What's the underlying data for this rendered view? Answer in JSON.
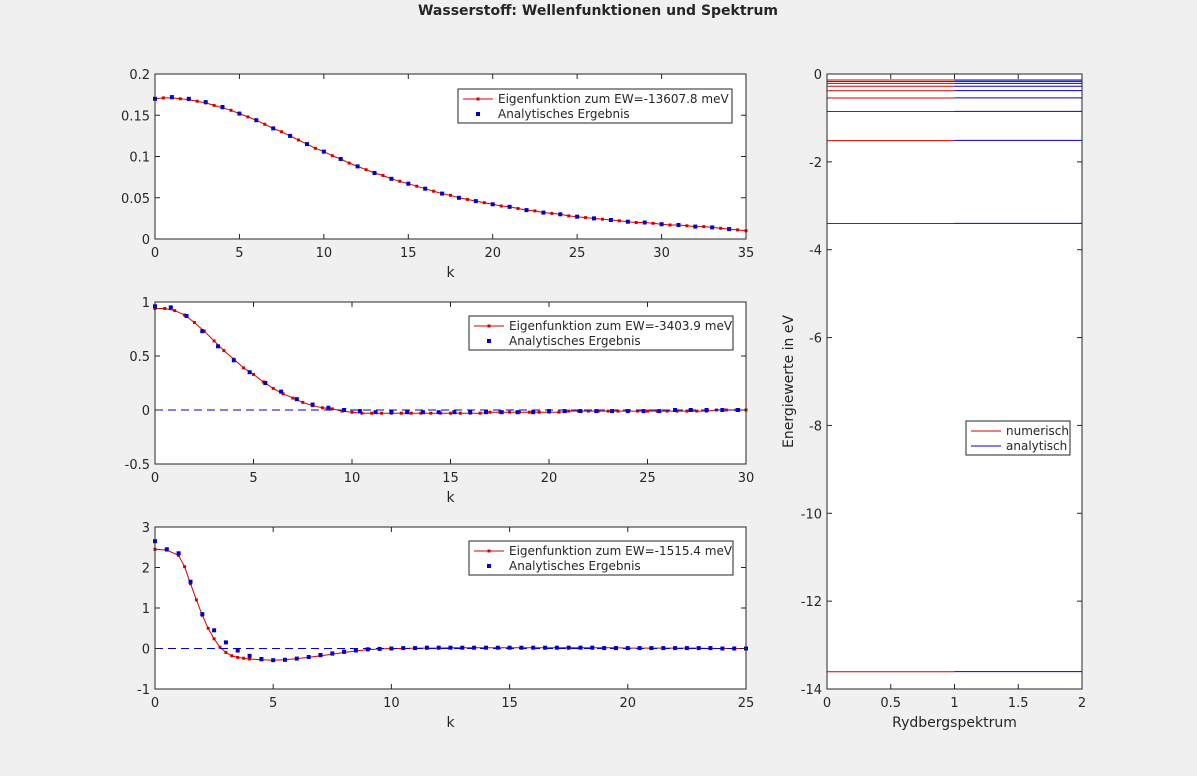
{
  "figure": {
    "title": "Wasserstoff: Wellenfunktionen und Spektrum"
  },
  "colors": {
    "numeric": "#d40000",
    "analytic": "#0000c8",
    "axes_bg": "#ffffff",
    "figure_bg": "#f0f0f0"
  },
  "chart_data": [
    {
      "type": "line",
      "xlabel": "k",
      "ylabel": "",
      "xlim": [
        0,
        35
      ],
      "ylim": [
        0,
        0.2
      ],
      "xticks": [
        0,
        5,
        10,
        15,
        20,
        25,
        30,
        35
      ],
      "yticks": [
        0,
        0.05,
        0.1,
        0.15,
        0.2
      ],
      "ytick_labels": [
        "0",
        "0.05",
        "0.1",
        "0.15",
        "0.2"
      ],
      "legend": {
        "position": "top-right",
        "entries": [
          "Eigenfunktion zum EW=-13607.8 meV",
          "Analytisches Ergebnis"
        ]
      },
      "series": [
        {
          "name": "Eigenfunktion zum EW=-13607.8 meV",
          "style": "line-with-markers",
          "color": "#d40000",
          "x": [
            0,
            0.5,
            1,
            1.5,
            2,
            2.5,
            3,
            3.5,
            4,
            4.5,
            5,
            5.5,
            6,
            6.5,
            7,
            7.5,
            8,
            8.5,
            9,
            9.5,
            10,
            10.5,
            11,
            11.5,
            12,
            12.5,
            13,
            13.5,
            14,
            14.5,
            15,
            15.5,
            16,
            16.5,
            17,
            17.5,
            18,
            18.5,
            19,
            19.5,
            20,
            20.5,
            21,
            21.5,
            22,
            22.5,
            23,
            23.5,
            24,
            24.5,
            25,
            25.5,
            26,
            26.5,
            27,
            27.5,
            28,
            28.5,
            29,
            29.5,
            30,
            30.5,
            31,
            31.5,
            32,
            32.5,
            33,
            33.5,
            34,
            34.5,
            35
          ],
          "y": [
            0.17,
            0.171,
            0.171,
            0.17,
            0.169,
            0.167,
            0.165,
            0.162,
            0.159,
            0.156,
            0.152,
            0.148,
            0.144,
            0.139,
            0.134,
            0.13,
            0.125,
            0.12,
            0.115,
            0.11,
            0.106,
            0.101,
            0.097,
            0.092,
            0.088,
            0.084,
            0.08,
            0.077,
            0.073,
            0.07,
            0.067,
            0.064,
            0.061,
            0.058,
            0.055,
            0.053,
            0.05,
            0.048,
            0.046,
            0.044,
            0.042,
            0.04,
            0.039,
            0.037,
            0.035,
            0.034,
            0.032,
            0.031,
            0.03,
            0.028,
            0.027,
            0.026,
            0.025,
            0.024,
            0.023,
            0.022,
            0.021,
            0.02,
            0.02,
            0.019,
            0.018,
            0.017,
            0.017,
            0.016,
            0.015,
            0.015,
            0.014,
            0.013,
            0.012,
            0.011,
            0.01
          ]
        },
        {
          "name": "Analytisches Ergebnis",
          "style": "markers",
          "color": "#0000c8",
          "x": [
            0,
            1,
            2,
            3,
            4,
            5,
            6,
            7,
            8,
            9,
            10,
            11,
            12,
            13,
            14,
            15,
            16,
            17,
            18,
            19,
            20,
            21,
            22,
            23,
            24,
            25,
            26,
            27,
            28,
            29,
            30,
            31,
            32,
            33,
            34
          ],
          "y": [
            0.17,
            0.172,
            0.17,
            0.166,
            0.16,
            0.152,
            0.144,
            0.134,
            0.125,
            0.115,
            0.106,
            0.097,
            0.088,
            0.08,
            0.073,
            0.067,
            0.061,
            0.055,
            0.05,
            0.046,
            0.042,
            0.039,
            0.035,
            0.032,
            0.03,
            0.027,
            0.025,
            0.023,
            0.021,
            0.02,
            0.018,
            0.017,
            0.015,
            0.014,
            0.012
          ]
        },
        {
          "name": "",
          "style": "dashed",
          "color": "#0000c8",
          "x": [
            0,
            35
          ],
          "y": [
            0,
            0
          ]
        }
      ]
    },
    {
      "type": "line",
      "xlabel": "k",
      "ylabel": "",
      "xlim": [
        0,
        30
      ],
      "ylim": [
        -0.5,
        1
      ],
      "xticks": [
        0,
        5,
        10,
        15,
        20,
        25,
        30
      ],
      "yticks": [
        -0.5,
        0,
        0.5,
        1
      ],
      "ytick_labels": [
        "-0.5",
        "0",
        "0.5",
        "1"
      ],
      "legend": {
        "position": "top-right",
        "entries": [
          "Eigenfunktion zum EW=-3403.9 meV",
          "Analytisches Ergebnis"
        ]
      },
      "series": [
        {
          "name": "Eigenfunktion zum EW=-3403.9 meV",
          "style": "line-with-markers",
          "color": "#d40000",
          "x": [
            0,
            0.5,
            1,
            1.5,
            2,
            2.5,
            3,
            3.5,
            4,
            4.5,
            5,
            5.5,
            6,
            6.5,
            7,
            7.5,
            8,
            8.5,
            9,
            9.5,
            10,
            10.5,
            11,
            11.5,
            12,
            12.5,
            13,
            13.5,
            14,
            14.5,
            15,
            15.5,
            16,
            16.5,
            17,
            17.5,
            18,
            18.5,
            19,
            19.5,
            20,
            20.5,
            21,
            21.5,
            22,
            22.5,
            23,
            23.5,
            24,
            24.5,
            25,
            25.5,
            26,
            26.5,
            27,
            27.5,
            28,
            28.5,
            29,
            29.5,
            30
          ],
          "y": [
            0.94,
            0.94,
            0.92,
            0.88,
            0.81,
            0.73,
            0.64,
            0.55,
            0.47,
            0.39,
            0.33,
            0.26,
            0.2,
            0.15,
            0.11,
            0.07,
            0.04,
            0.02,
            0.01,
            -0.01,
            -0.02,
            -0.03,
            -0.03,
            -0.03,
            -0.03,
            -0.03,
            -0.03,
            -0.03,
            -0.03,
            -0.03,
            -0.03,
            -0.03,
            -0.03,
            -0.03,
            -0.02,
            -0.02,
            -0.02,
            -0.02,
            -0.02,
            -0.02,
            -0.02,
            -0.02,
            -0.01,
            -0.01,
            -0.01,
            -0.01,
            -0.01,
            -0.01,
            -0.01,
            -0.01,
            -0.01,
            -0.01,
            -0.01,
            -0.01,
            -0.01,
            -0.01,
            -0.01,
            0.0,
            0.0,
            0.0,
            0.0
          ]
        },
        {
          "name": "Analytisches Ergebnis",
          "style": "markers",
          "color": "#0000c8",
          "x": [
            0,
            0.8,
            1.6,
            2.4,
            3.2,
            4.0,
            4.8,
            5.6,
            6.4,
            7.2,
            8.0,
            8.8,
            9.6,
            10.4,
            11.2,
            12.0,
            12.8,
            13.6,
            14.4,
            15.2,
            16.0,
            16.8,
            17.6,
            18.4,
            19.2,
            20.0,
            20.8,
            21.6,
            22.4,
            23.2,
            24.0,
            24.8,
            25.6,
            26.4,
            27.2,
            28.0,
            28.8,
            29.6
          ],
          "y": [
            0.96,
            0.95,
            0.87,
            0.73,
            0.59,
            0.46,
            0.35,
            0.25,
            0.17,
            0.1,
            0.05,
            0.02,
            0.0,
            -0.01,
            -0.02,
            -0.02,
            -0.02,
            -0.02,
            -0.02,
            -0.02,
            -0.02,
            -0.02,
            -0.02,
            -0.02,
            -0.02,
            -0.01,
            -0.01,
            -0.01,
            -0.01,
            -0.01,
            -0.01,
            -0.01,
            -0.01,
            0.0,
            0.0,
            0.0,
            0.0,
            0.0
          ]
        },
        {
          "name": "",
          "style": "dashed",
          "color": "#0000c8",
          "x": [
            0,
            30
          ],
          "y": [
            0,
            0
          ]
        }
      ]
    },
    {
      "type": "line",
      "xlabel": "k",
      "ylabel": "",
      "xlim": [
        0,
        25
      ],
      "ylim": [
        -1,
        3
      ],
      "xticks": [
        0,
        5,
        10,
        15,
        20,
        25
      ],
      "yticks": [
        -1,
        0,
        1,
        2,
        3
      ],
      "ytick_labels": [
        "-1",
        "0",
        "1",
        "2",
        "3"
      ],
      "legend": {
        "position": "top-right",
        "entries": [
          "Eigenfunktion zum EW=-1515.4 meV",
          "Analytisches Ergebnis"
        ]
      },
      "series": [
        {
          "name": "Eigenfunktion zum EW=-1515.4 meV",
          "style": "line-with-markers",
          "color": "#d40000",
          "x": [
            0,
            0.5,
            1.0,
            1.25,
            1.5,
            1.75,
            2.0,
            2.25,
            2.5,
            2.75,
            3.0,
            3.25,
            3.5,
            3.75,
            4.0,
            4.5,
            5.0,
            5.5,
            6.0,
            6.5,
            7.0,
            7.5,
            8.0,
            8.5,
            9.0,
            9.5,
            10.0,
            10.5,
            11.0,
            11.5,
            12.0,
            12.5,
            13.0,
            13.5,
            14.0,
            14.5,
            15.0,
            15.5,
            16.0,
            16.5,
            17.0,
            17.5,
            18.0,
            18.5,
            19.0,
            19.5,
            20.0,
            20.5,
            21.0,
            21.5,
            22.0,
            22.5,
            23.0,
            23.5,
            24.0,
            24.5,
            25.0
          ],
          "y": [
            2.45,
            2.43,
            2.3,
            2.02,
            1.6,
            1.2,
            0.82,
            0.5,
            0.24,
            0.03,
            -0.1,
            -0.18,
            -0.22,
            -0.24,
            -0.26,
            -0.28,
            -0.29,
            -0.28,
            -0.25,
            -0.22,
            -0.18,
            -0.14,
            -0.1,
            -0.06,
            -0.03,
            -0.01,
            0.0,
            0.0,
            0.01,
            0.01,
            0.01,
            0.02,
            0.02,
            0.02,
            0.02,
            0.02,
            0.02,
            0.02,
            0.02,
            0.02,
            0.02,
            0.02,
            0.02,
            0.02,
            0.02,
            0.02,
            0.01,
            0.01,
            0.01,
            0.01,
            0.01,
            0.01,
            0.01,
            0.0,
            0.0,
            0.0,
            0.0
          ]
        },
        {
          "name": "Analytisches Ergebnis",
          "style": "markers",
          "color": "#0000c8",
          "x": [
            0,
            0.5,
            1.0,
            1.5,
            2.0,
            2.5,
            3.0,
            3.5,
            4.0,
            4.5,
            5.0,
            5.5,
            6.0,
            6.5,
            7.0,
            7.5,
            8.0,
            8.5,
            9.0,
            9.5,
            10.0,
            10.5,
            11.0,
            11.5,
            12.0,
            12.5,
            13.0,
            13.5,
            14.0,
            14.5,
            15.0,
            15.5,
            16.0,
            16.5,
            17.0,
            17.5,
            18.0,
            18.5,
            19.0,
            19.5,
            20.0,
            20.5,
            21.0,
            21.5,
            22.0,
            22.5,
            23.0,
            23.5,
            24.0,
            24.5,
            25.0
          ],
          "y": [
            2.65,
            2.45,
            2.35,
            1.65,
            0.85,
            0.45,
            0.15,
            -0.05,
            -0.18,
            -0.26,
            -0.29,
            -0.28,
            -0.25,
            -0.21,
            -0.16,
            -0.12,
            -0.08,
            -0.05,
            -0.02,
            -0.01,
            0.0,
            0.01,
            0.01,
            0.02,
            0.02,
            0.02,
            0.02,
            0.02,
            0.02,
            0.02,
            0.02,
            0.02,
            0.02,
            0.02,
            0.02,
            0.02,
            0.02,
            0.02,
            0.01,
            0.01,
            0.01,
            0.01,
            0.01,
            0.01,
            0.01,
            0.01,
            0.01,
            0.01,
            0.0,
            0.0,
            0.0
          ]
        },
        {
          "name": "",
          "style": "dashed",
          "color": "#0000c8",
          "x": [
            0,
            25
          ],
          "y": [
            0,
            0
          ]
        }
      ]
    },
    {
      "type": "line",
      "xlabel": "Rydbergspektrum",
      "ylabel": "Energiewerte in eV",
      "xlim": [
        0,
        2
      ],
      "ylim": [
        -14,
        0
      ],
      "xticks": [
        0,
        0.5,
        1,
        1.5,
        2
      ],
      "yticks": [
        0,
        -2,
        -4,
        -6,
        -8,
        -10,
        -12,
        -14
      ],
      "ytick_labels": [
        "0",
        "-2",
        "-4",
        "-6",
        "-8",
        "-10",
        "-12",
        "-14"
      ],
      "legend": {
        "position": "right",
        "entries": [
          "numerisch",
          "analytisch"
        ]
      },
      "series": [
        {
          "name": "numerisch",
          "style": "levels",
          "color": "#d40000",
          "x_range": [
            0,
            1
          ],
          "levels": [
            -13.6078,
            -3.4039,
            -1.5154,
            -0.854,
            -0.547,
            -0.38,
            -0.28,
            -0.214,
            -0.17,
            -0.138
          ]
        },
        {
          "name": "analytisch",
          "style": "levels",
          "color": "#0000c8",
          "x_range": [
            1,
            2
          ],
          "levels": [
            -13.6057,
            -3.4014,
            -1.5117,
            -0.8504,
            -0.5442,
            -0.3779,
            -0.2777,
            -0.2126,
            -0.168,
            -0.136
          ]
        }
      ]
    }
  ]
}
